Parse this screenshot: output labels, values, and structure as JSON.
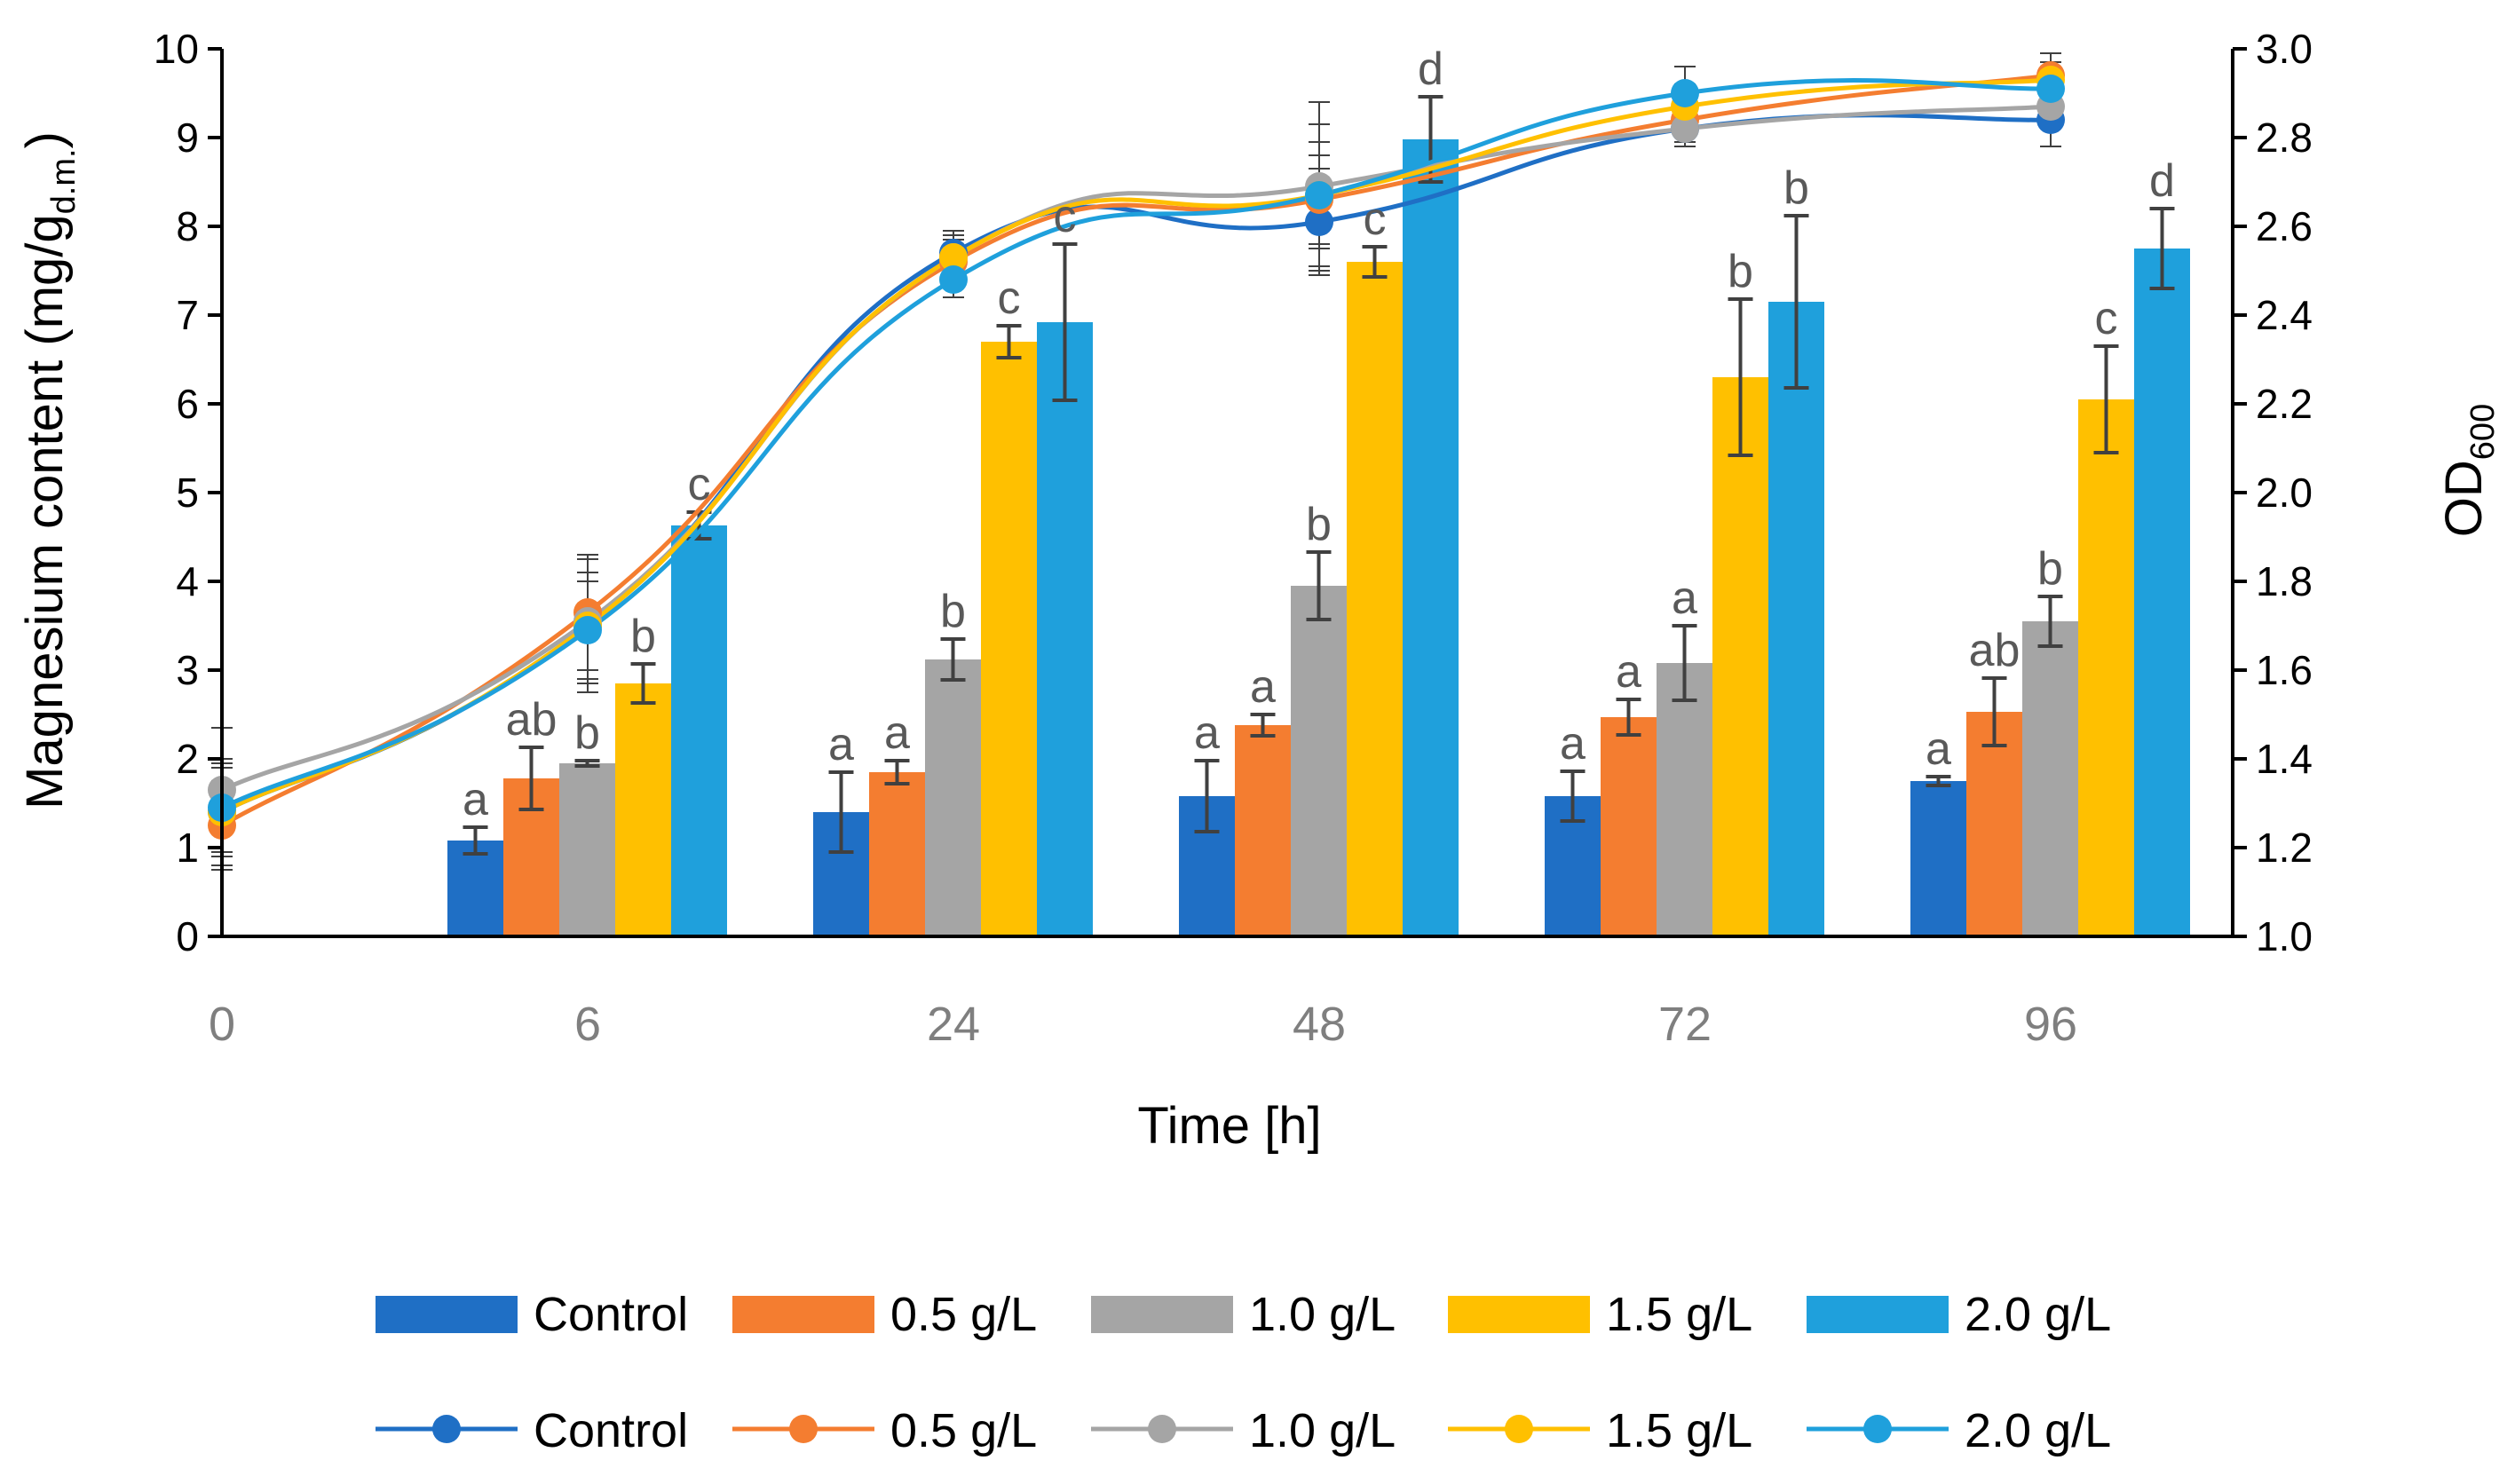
{
  "chart_data": {
    "type": "bar+line",
    "title": "",
    "categories": [
      "0",
      "6",
      "24",
      "48",
      "72",
      "96"
    ],
    "xlabel": "Time [h]",
    "ylabel_left": {
      "main": "Magnesium content (mg/g",
      "sub": "d.m.",
      "close": ")"
    },
    "ylabel_right": {
      "main": "OD",
      "sub": "600"
    },
    "ylim_left": [
      0,
      10
    ],
    "yticks_left": [
      "0",
      "1",
      "2",
      "3",
      "4",
      "5",
      "6",
      "7",
      "8",
      "9",
      "10"
    ],
    "ylim_right": [
      1.0,
      3.0
    ],
    "yticks_right": [
      "1.0",
      "1.2",
      "1.4",
      "1.6",
      "1.8",
      "2.0",
      "2.2",
      "2.4",
      "2.6",
      "2.8",
      "3.0"
    ],
    "grid": false,
    "legend_position": "bottom",
    "series_names": [
      "Control",
      "0.5 g/L",
      "1.0 g/L",
      "1.5 g/L",
      "2.0 g/L"
    ],
    "colors": [
      "#1F6FC5",
      "#F47D30",
      "#A5A5A5",
      "#FFC000",
      "#1FA0DC"
    ],
    "bar_series": [
      {
        "name": "Control",
        "values": [
          null,
          1.08,
          1.4,
          1.58,
          1.58,
          1.75
        ],
        "errors": [
          null,
          0.15,
          0.45,
          0.4,
          0.28,
          0.05
        ],
        "labels": [
          null,
          "a",
          "a",
          "a",
          "a",
          "a"
        ]
      },
      {
        "name": "0.5 g/L",
        "values": [
          null,
          1.78,
          1.85,
          2.38,
          2.47,
          2.53
        ],
        "errors": [
          null,
          0.35,
          0.13,
          0.12,
          0.2,
          0.38
        ],
        "labels": [
          null,
          "ab",
          "a",
          "a",
          "a",
          "ab"
        ]
      },
      {
        "name": "1.0 g/L",
        "values": [
          null,
          1.95,
          3.12,
          3.95,
          3.08,
          3.55
        ],
        "errors": [
          null,
          0.03,
          0.23,
          0.38,
          0.42,
          0.28
        ],
        "labels": [
          null,
          "b",
          "b",
          "b",
          "a",
          "b"
        ]
      },
      {
        "name": "1.5 g/L",
        "values": [
          null,
          2.85,
          6.7,
          7.6,
          6.3,
          6.05
        ],
        "errors": [
          null,
          0.22,
          0.18,
          0.17,
          0.88,
          0.6
        ],
        "labels": [
          null,
          "b",
          "c",
          "c",
          "b",
          "c"
        ]
      },
      {
        "name": "2.0 g/L",
        "values": [
          null,
          4.63,
          6.92,
          8.98,
          7.15,
          7.75
        ],
        "errors": [
          null,
          0.15,
          0.88,
          0.48,
          0.97,
          0.45
        ],
        "labels": [
          null,
          "c",
          "c",
          "d",
          "b",
          "d"
        ]
      }
    ],
    "line_series": [
      {
        "name": "Control",
        "values": [
          1.28,
          1.7,
          2.54,
          2.61,
          2.82,
          2.84
        ],
        "errors": [
          0.12,
          0.12,
          0.04,
          0.12,
          0.03,
          0.06
        ]
      },
      {
        "name": "0.5 g/L",
        "values": [
          1.25,
          1.73,
          2.52,
          2.66,
          2.84,
          2.94
        ],
        "errors": [
          0.1,
          0.13,
          0.05,
          0.1,
          0.03,
          0.05
        ]
      },
      {
        "name": "1.0 g/L",
        "values": [
          1.33,
          1.71,
          2.53,
          2.69,
          2.82,
          2.87
        ],
        "errors": [
          0.14,
          0.14,
          0.06,
          0.19,
          0.04,
          0.04
        ]
      },
      {
        "name": "1.5 g/L",
        "values": [
          1.28,
          1.7,
          2.53,
          2.67,
          2.87,
          2.93
        ],
        "errors": [
          0.1,
          0.15,
          0.05,
          0.16,
          0.05,
          0.04
        ]
      },
      {
        "name": "2.0 g/L",
        "values": [
          1.29,
          1.69,
          2.48,
          2.67,
          2.9,
          2.91
        ],
        "errors": [
          0.1,
          0.11,
          0.04,
          0.12,
          0.06,
          0.06
        ]
      }
    ]
  }
}
